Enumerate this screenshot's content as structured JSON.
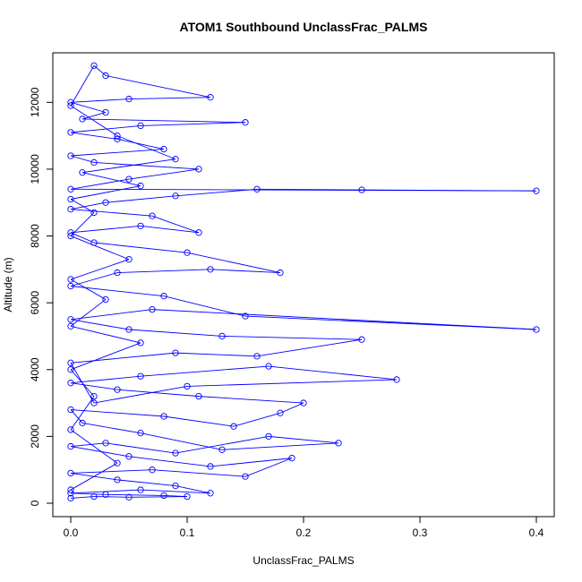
{
  "chart_data": {
    "type": "line",
    "title": "ATOM1 Southbound UnclassFrac_PALMS",
    "xlabel": "UnclassFrac_PALMS",
    "ylabel": "Altitude (m)",
    "xlim": [
      0,
      0.4
    ],
    "ylim": [
      0,
      13000
    ],
    "x_ticks": [
      0,
      0.1,
      0.2,
      0.3,
      0.4
    ],
    "x_tick_labels": [
      "0.0",
      "0.1",
      "0.2",
      "0.3",
      "0.4"
    ],
    "y_ticks": [
      0,
      2000,
      4000,
      6000,
      8000,
      10000,
      12000
    ],
    "y_tick_labels": [
      "0",
      "2000",
      "4000",
      "6000",
      "8000",
      "10000",
      "12000"
    ],
    "marker": "open-circle",
    "grid": false,
    "legend": "none",
    "series": [
      {
        "color": "#0000ff",
        "points": [
          [
            0.0,
            150
          ],
          [
            0.02,
            200
          ],
          [
            0.05,
            180
          ],
          [
            0.1,
            200
          ],
          [
            0.08,
            230
          ],
          [
            0.03,
            260
          ],
          [
            0.0,
            300
          ],
          [
            0.06,
            400
          ],
          [
            0.12,
            300
          ],
          [
            0.09,
            520
          ],
          [
            0.04,
            700
          ],
          [
            0.0,
            900
          ],
          [
            0.07,
            1000
          ],
          [
            0.15,
            800
          ],
          [
            0.19,
            1350
          ],
          [
            0.12,
            1100
          ],
          [
            0.05,
            1400
          ],
          [
            0.0,
            1700
          ],
          [
            0.03,
            1800
          ],
          [
            0.09,
            1500
          ],
          [
            0.17,
            2000
          ],
          [
            0.23,
            1800
          ],
          [
            0.13,
            1600
          ],
          [
            0.06,
            2100
          ],
          [
            0.01,
            2400
          ],
          [
            0.0,
            2800
          ],
          [
            0.08,
            2600
          ],
          [
            0.14,
            2300
          ],
          [
            0.18,
            2700
          ],
          [
            0.2,
            3000
          ],
          [
            0.11,
            3200
          ],
          [
            0.04,
            3400
          ],
          [
            0.0,
            3600
          ],
          [
            0.06,
            3800
          ],
          [
            0.17,
            4100
          ],
          [
            0.28,
            3700
          ],
          [
            0.1,
            3500
          ],
          [
            0.02,
            3000
          ],
          [
            0.0,
            4200
          ],
          [
            0.09,
            4500
          ],
          [
            0.16,
            4400
          ],
          [
            0.25,
            4900
          ],
          [
            0.13,
            5000
          ],
          [
            0.05,
            5200
          ],
          [
            0.0,
            5500
          ],
          [
            0.07,
            5800
          ],
          [
            0.4,
            5200
          ],
          [
            0.15,
            5600
          ],
          [
            0.08,
            6200
          ],
          [
            0.0,
            6500
          ],
          [
            0.04,
            6900
          ],
          [
            0.12,
            7000
          ],
          [
            0.18,
            6900
          ],
          [
            0.1,
            7500
          ],
          [
            0.02,
            7800
          ],
          [
            0.0,
            8100
          ],
          [
            0.06,
            8300
          ],
          [
            0.11,
            8100
          ],
          [
            0.07,
            8600
          ],
          [
            0.0,
            8800
          ],
          [
            0.03,
            9000
          ],
          [
            0.09,
            9200
          ],
          [
            0.16,
            9400
          ],
          [
            0.25,
            9380
          ],
          [
            0.4,
            9350
          ],
          [
            0.0,
            9400
          ],
          [
            0.05,
            9700
          ],
          [
            0.11,
            10000
          ],
          [
            0.02,
            10200
          ],
          [
            0.0,
            10400
          ],
          [
            0.08,
            10600
          ],
          [
            0.04,
            10900
          ],
          [
            0.0,
            11100
          ],
          [
            0.06,
            11300
          ],
          [
            0.15,
            11400
          ],
          [
            0.01,
            11500
          ],
          [
            0.03,
            11700
          ],
          [
            0.0,
            12000
          ],
          [
            0.05,
            12100
          ],
          [
            0.12,
            12150
          ],
          [
            0.03,
            12800
          ],
          [
            0.02,
            13100
          ],
          [
            0.0,
            11900
          ],
          [
            0.04,
            11000
          ],
          [
            0.09,
            10300
          ],
          [
            0.01,
            9900
          ],
          [
            0.06,
            9500
          ],
          [
            0.0,
            9100
          ],
          [
            0.02,
            8700
          ],
          [
            0.0,
            8000
          ],
          [
            0.05,
            7300
          ],
          [
            0.0,
            6700
          ],
          [
            0.03,
            6100
          ],
          [
            0.0,
            5300
          ],
          [
            0.06,
            4800
          ],
          [
            0.0,
            4000
          ],
          [
            0.02,
            3200
          ],
          [
            0.0,
            2200
          ],
          [
            0.04,
            1200
          ],
          [
            0.0,
            400
          ]
        ]
      }
    ]
  }
}
